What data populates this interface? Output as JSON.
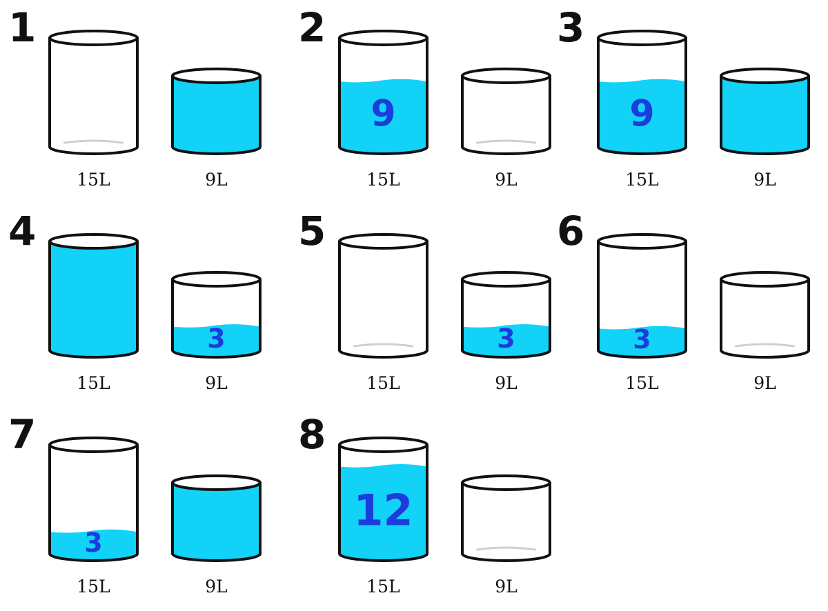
{
  "colors": {
    "water": "#12d2f8",
    "ink": "#111111",
    "amount_ink": "#1a3ddb",
    "background": "#ffffff"
  },
  "caption_large": "15L",
  "caption_small": "9L",
  "steps": [
    {
      "number": "1",
      "large": {
        "fill": 0,
        "label": ""
      },
      "small": {
        "fill": 1,
        "label": ""
      }
    },
    {
      "number": "2",
      "large": {
        "fill": 0.6,
        "label": "9"
      },
      "small": {
        "fill": 0,
        "label": ""
      }
    },
    {
      "number": "3",
      "large": {
        "fill": 0.6,
        "label": "9"
      },
      "small": {
        "fill": 1,
        "label": ""
      }
    },
    {
      "number": "4",
      "large": {
        "fill": 1,
        "label": ""
      },
      "small": {
        "fill": 0.333,
        "label": "3"
      }
    },
    {
      "number": "5",
      "large": {
        "fill": 0,
        "label": ""
      },
      "small": {
        "fill": 0.333,
        "label": "3"
      }
    },
    {
      "number": "6",
      "large": {
        "fill": 0.2,
        "label": "3"
      },
      "small": {
        "fill": 0,
        "label": ""
      }
    },
    {
      "number": "7",
      "large": {
        "fill": 0.2,
        "label": "3"
      },
      "small": {
        "fill": 1,
        "label": ""
      }
    },
    {
      "number": "8",
      "large": {
        "fill": 0.8,
        "label": "12"
      },
      "small": {
        "fill": 0,
        "label": ""
      }
    }
  ]
}
